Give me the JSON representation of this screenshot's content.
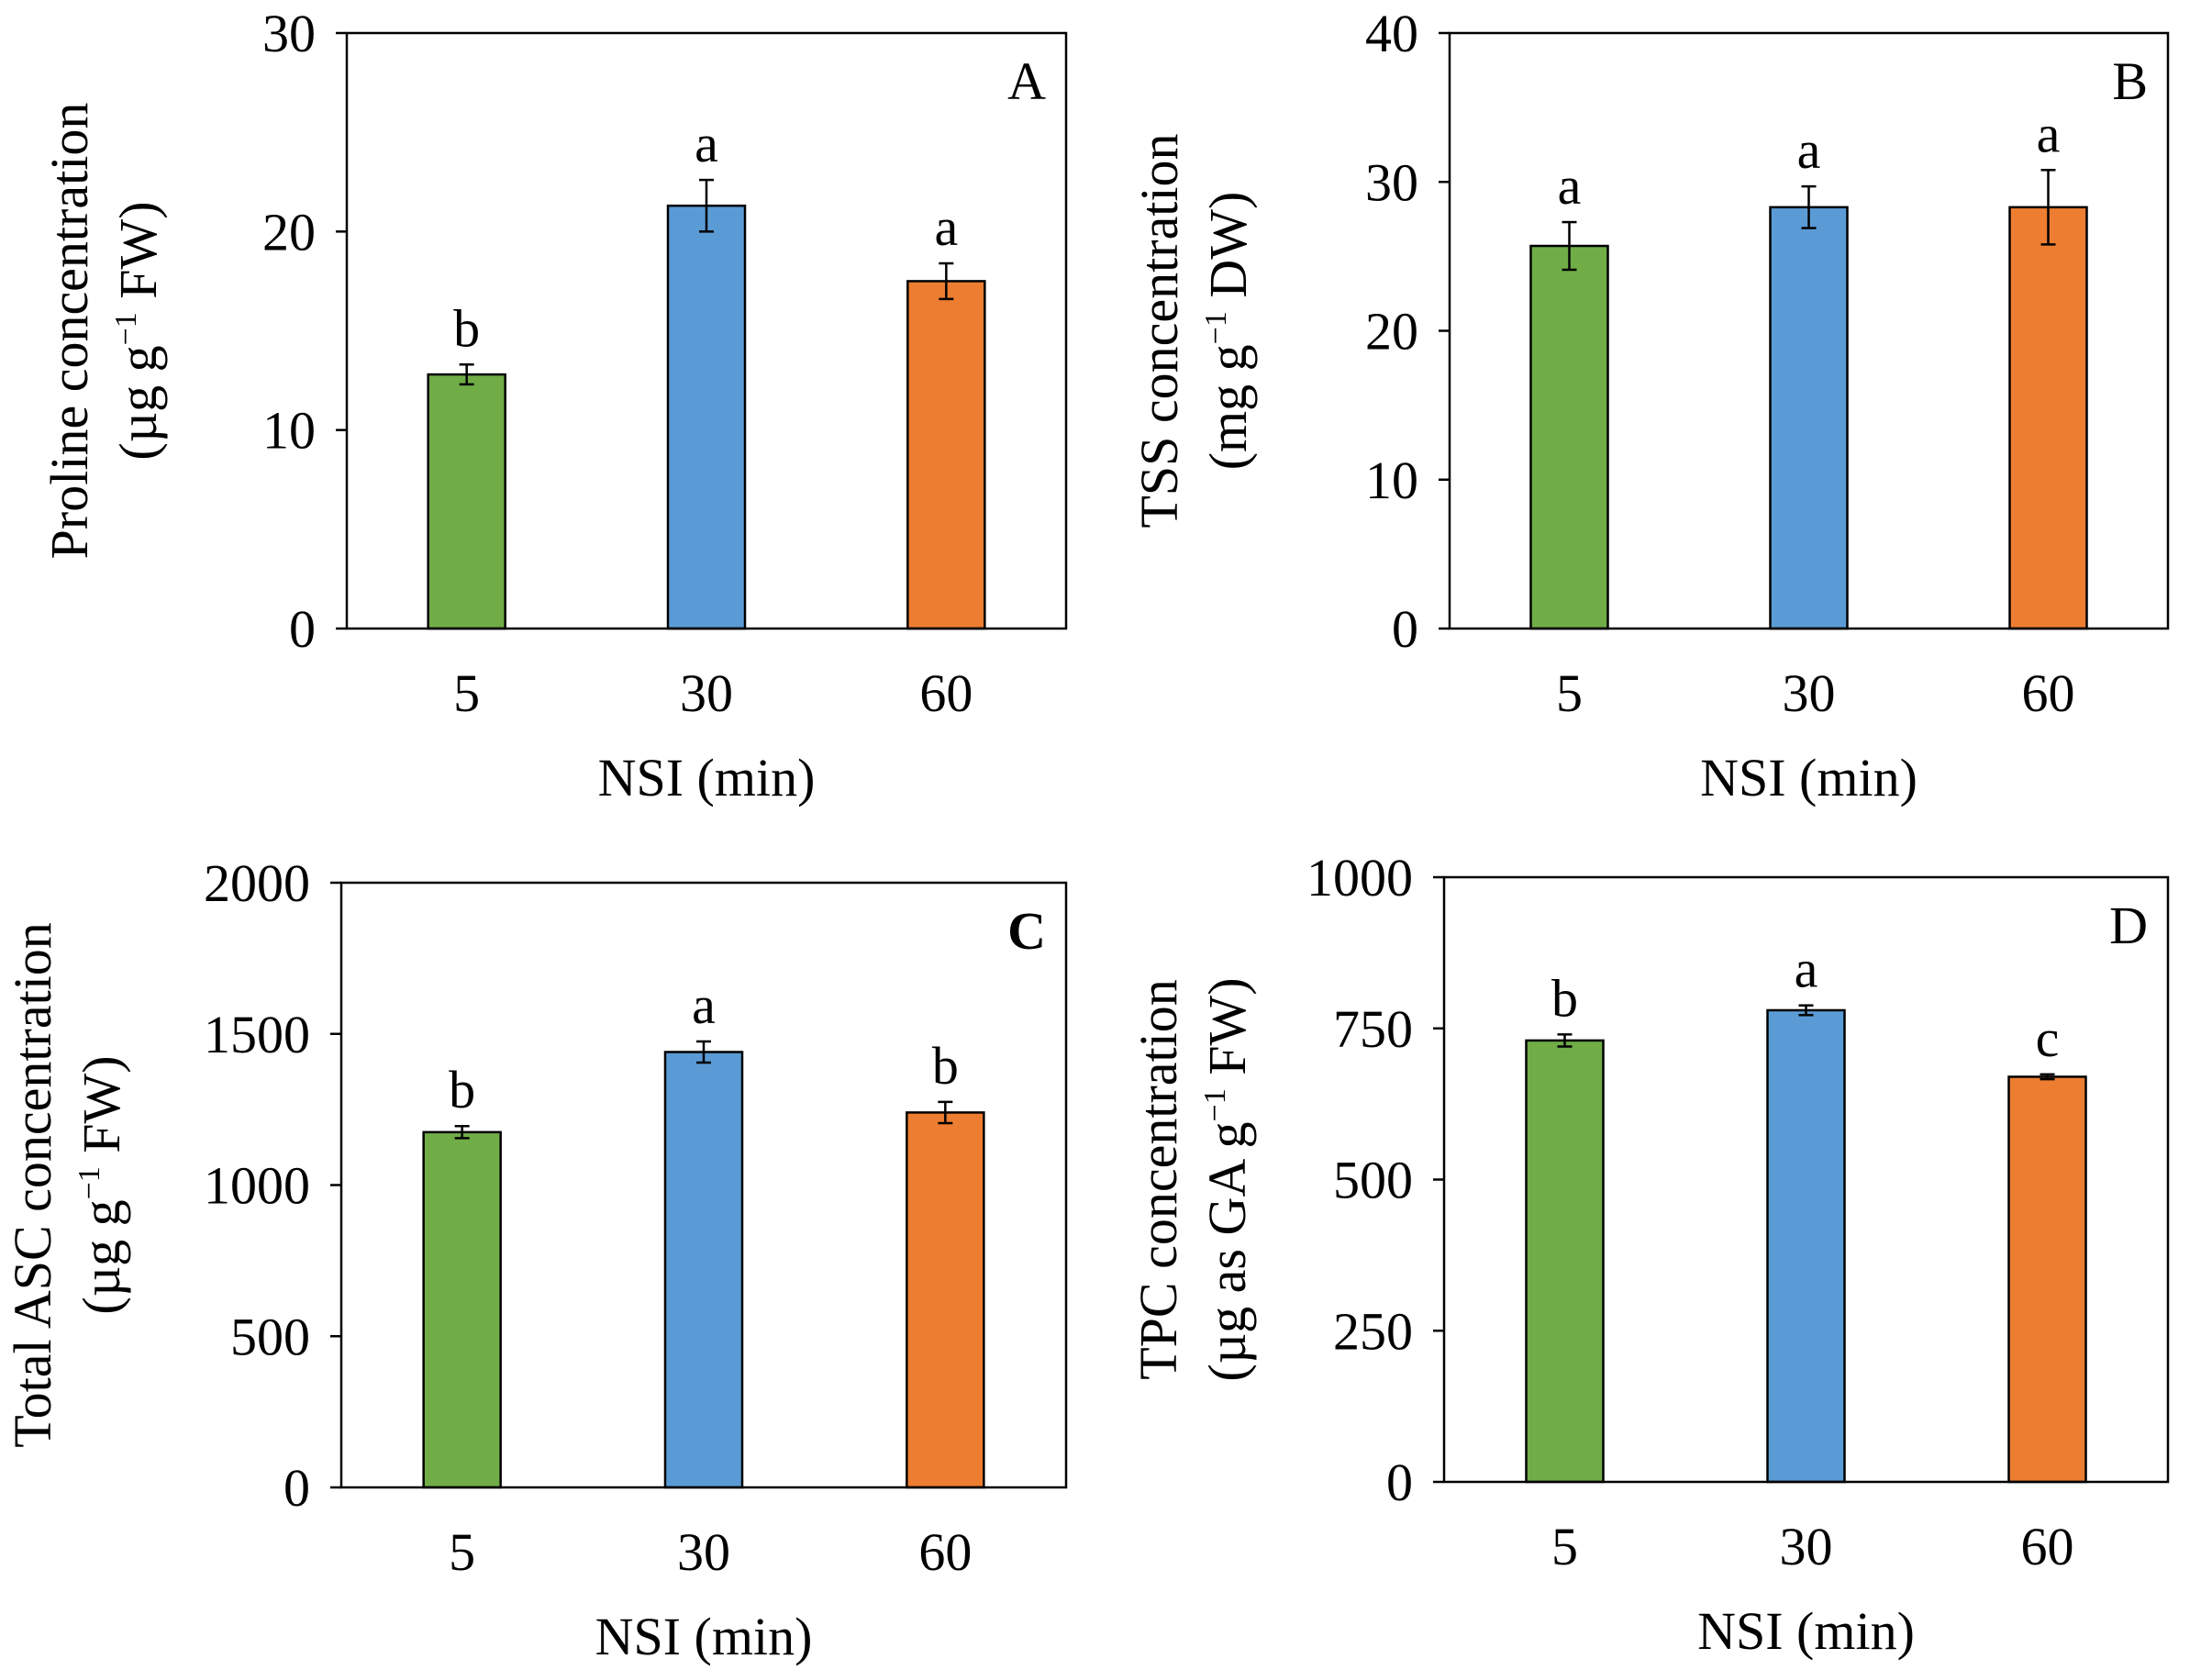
{
  "chart_data": [
    {
      "panel": "A",
      "type": "bar",
      "categories": [
        "5",
        "30",
        "60"
      ],
      "values": [
        12.8,
        21.3,
        17.5
      ],
      "errors": [
        0.5,
        1.3,
        0.9
      ],
      "significance": [
        "b",
        "a",
        "a"
      ],
      "xlabel": "NSI (min)",
      "ylabel_line1": "Proline concentration",
      "ylabel_line2_prefix": "(µg g",
      "ylabel_sup": "−1",
      "ylabel_line2_suffix": " FW)",
      "ylim": [
        0,
        30
      ],
      "yticks": [
        0,
        10,
        20,
        30
      ],
      "bold_letter": false
    },
    {
      "panel": "B",
      "type": "bar",
      "categories": [
        "5",
        "30",
        "60"
      ],
      "values": [
        25.7,
        28.3,
        28.3
      ],
      "errors": [
        1.6,
        1.4,
        2.5
      ],
      "significance": [
        "a",
        "a",
        "a"
      ],
      "xlabel": "NSI (min)",
      "ylabel_line1": "TSS concentration",
      "ylabel_line2_prefix": "(mg g",
      "ylabel_sup": "−1",
      "ylabel_line2_suffix": " DW)",
      "ylim": [
        0,
        40
      ],
      "yticks": [
        0,
        10,
        20,
        30,
        40
      ],
      "bold_letter": false
    },
    {
      "panel": "C",
      "type": "bar",
      "categories": [
        "5",
        "30",
        "60"
      ],
      "values": [
        1175,
        1440,
        1240
      ],
      "errors": [
        20,
        35,
        35
      ],
      "significance": [
        "b",
        "a",
        "b"
      ],
      "xlabel": "NSI (min)",
      "ylabel_line1": "Total ASC concentration",
      "ylabel_line2_prefix": "(µg g",
      "ylabel_sup": "−1",
      "ylabel_line2_suffix": " FW)",
      "ylim": [
        0,
        2000
      ],
      "yticks": [
        0,
        500,
        1000,
        1500,
        2000
      ],
      "bold_letter": true
    },
    {
      "panel": "D",
      "type": "bar",
      "categories": [
        "5",
        "30",
        "60"
      ],
      "values": [
        730,
        780,
        670
      ],
      "errors": [
        10,
        8,
        4
      ],
      "significance": [
        "b",
        "a",
        "c"
      ],
      "xlabel": "NSI (min)",
      "ylabel_line1": "TPC concentration",
      "ylabel_line2_prefix": "(µg as GA g",
      "ylabel_sup": "−1",
      "ylabel_line2_suffix": "  FW)",
      "ylim": [
        0,
        1000
      ],
      "yticks": [
        0,
        250,
        500,
        750,
        1000
      ],
      "bold_letter": false
    }
  ],
  "colors": {
    "bars": [
      "#70AD47",
      "#5B9BD5",
      "#ED7D31"
    ],
    "axis": "#000000",
    "background": "#FFFFFF"
  }
}
